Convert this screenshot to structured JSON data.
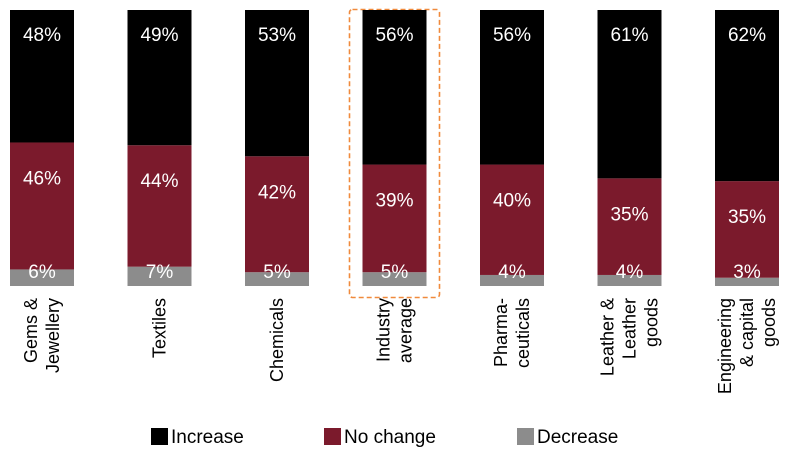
{
  "chart_data": {
    "type": "bar",
    "stacked": true,
    "normalized": true,
    "categories": [
      [
        "Gems &",
        "Jewellery"
      ],
      [
        "Textiles"
      ],
      [
        "Chemicals"
      ],
      [
        "Industry",
        "average"
      ],
      [
        "Pharma-",
        "ceuticals"
      ],
      [
        "Leather &",
        "Leather",
        "goods"
      ],
      [
        "Engineering",
        "& capital",
        "goods"
      ]
    ],
    "series": [
      {
        "name": "Decrease",
        "color": "#8c8c8c",
        "values": [
          6,
          7,
          5,
          5,
          4,
          4,
          3
        ],
        "labels": [
          "6%",
          "7%",
          "5%",
          "5%",
          "4%",
          "4%",
          "3%"
        ]
      },
      {
        "name": "No change",
        "color": "#7b1a2c",
        "values": [
          46,
          44,
          42,
          39,
          40,
          35,
          35
        ],
        "labels": [
          "46%",
          "44%",
          "42%",
          "39%",
          "40%",
          "35%",
          "35%"
        ]
      },
      {
        "name": "Increase",
        "color": "#000000",
        "values": [
          48,
          49,
          53,
          56,
          56,
          61,
          62
        ],
        "labels": [
          "48%",
          "49%",
          "53%",
          "56%",
          "56%",
          "61%",
          "62%"
        ]
      }
    ],
    "highlighted_category_index": 3,
    "highlight_color": "#f08a3c",
    "legend": {
      "placement": "bottom",
      "order": [
        "Increase",
        "No change",
        "Decrease"
      ]
    },
    "ylim": [
      0,
      100
    ],
    "grid": false
  }
}
